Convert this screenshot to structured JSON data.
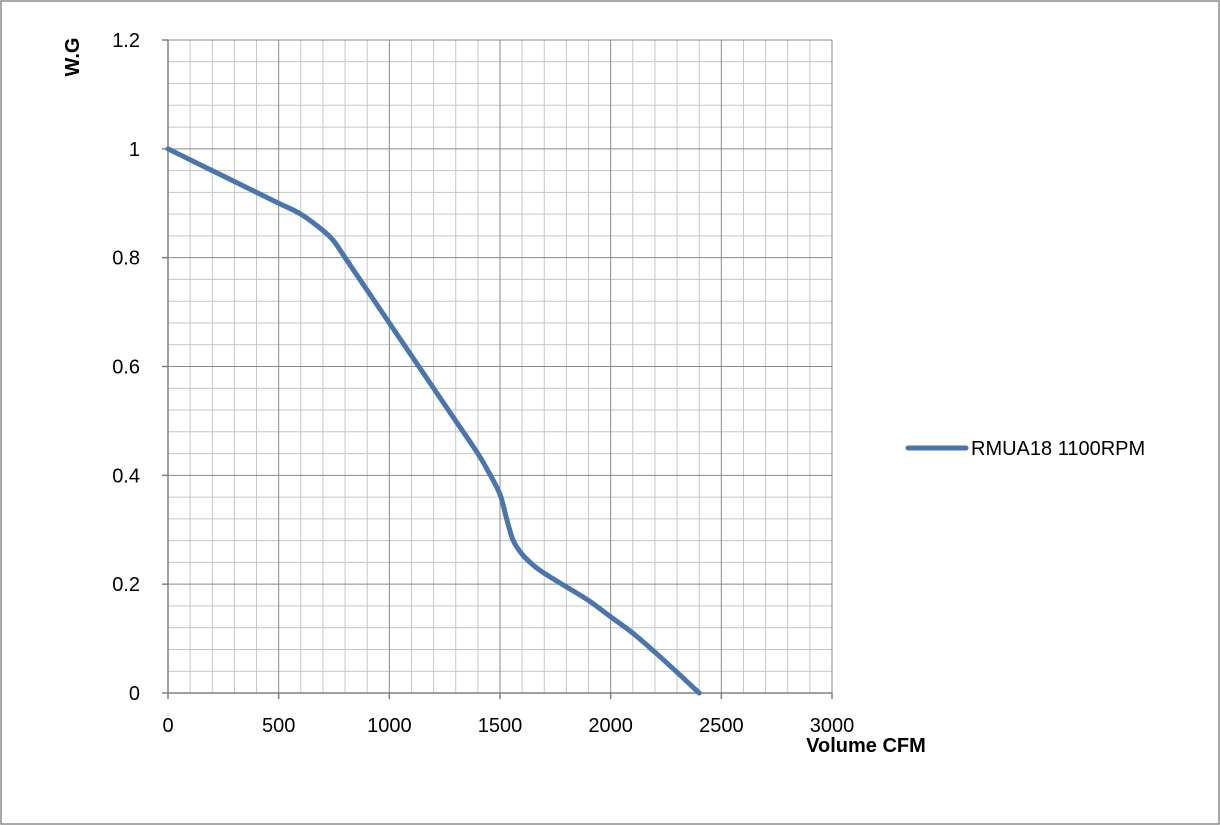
{
  "chart_data": {
    "type": "line",
    "title": "",
    "xlabel": "Volume CFM",
    "ylabel": "W.G",
    "xlim": [
      0,
      3000
    ],
    "ylim": [
      0,
      1.2
    ],
    "x_ticks": [
      0,
      500,
      1000,
      1500,
      2000,
      2500,
      3000
    ],
    "x_tick_labels": [
      "0",
      "500",
      "1000",
      "1500",
      "2000",
      "2500",
      "3000"
    ],
    "y_ticks": [
      0,
      0.2,
      0.4,
      0.6,
      0.8,
      1,
      1.2
    ],
    "y_tick_labels": [
      "0",
      "0.2",
      "0.4",
      "0.6",
      "0.8",
      "1",
      "1.2"
    ],
    "grid": true,
    "grid_minor_divisions": {
      "x": 5,
      "y": 5
    },
    "legend_position": "right",
    "series": [
      {
        "name": "RMUA18 1100RPM",
        "color": "#4a76ad",
        "x": [
          0,
          100,
          200,
          300,
          400,
          500,
          600,
          700,
          750,
          800,
          850,
          900,
          1000,
          1100,
          1200,
          1300,
          1400,
          1450,
          1500,
          1530,
          1560,
          1600,
          1650,
          1700,
          1800,
          1900,
          2000,
          2100,
          2200,
          2300,
          2400
        ],
        "y": [
          1.0,
          0.98,
          0.96,
          0.94,
          0.92,
          0.9,
          0.88,
          0.85,
          0.83,
          0.8,
          0.77,
          0.74,
          0.68,
          0.62,
          0.56,
          0.5,
          0.44,
          0.405,
          0.365,
          0.32,
          0.28,
          0.255,
          0.235,
          0.22,
          0.195,
          0.17,
          0.14,
          0.11,
          0.075,
          0.038,
          0.0
        ]
      }
    ]
  }
}
